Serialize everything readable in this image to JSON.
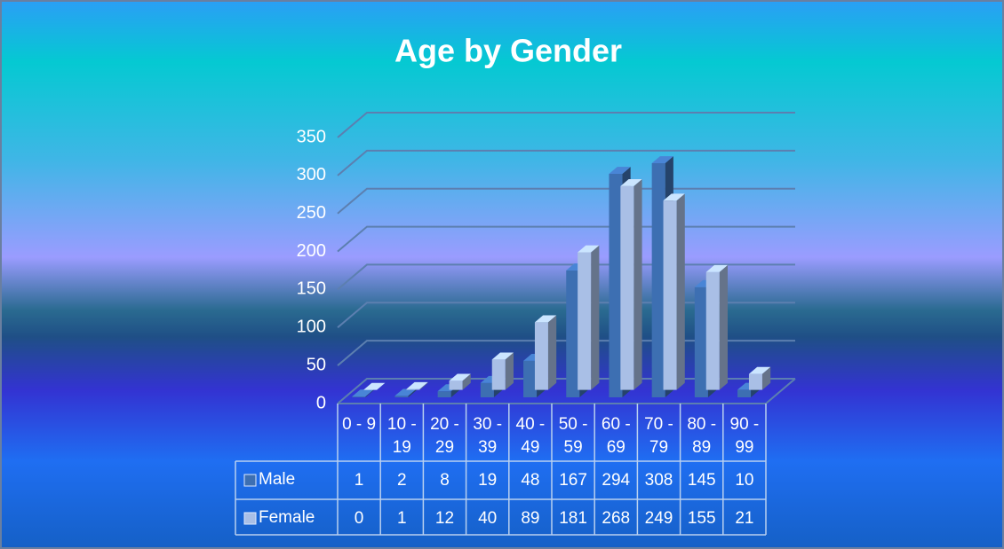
{
  "chart_data": {
    "type": "bar3d",
    "title": "Age by Gender",
    "categories": [
      "0 - 9",
      "10 - 19",
      "20 - 29",
      "30 - 39",
      "40 - 49",
      "50 - 59",
      "60 - 69",
      "70 - 79",
      "80 - 89",
      "90 - 99"
    ],
    "series": [
      {
        "name": "Male",
        "color": "#3d6fb2",
        "values": [
          1,
          2,
          8,
          19,
          48,
          167,
          294,
          308,
          145,
          10
        ]
      },
      {
        "name": "Female",
        "color": "#a9bfe6",
        "values": [
          0,
          1,
          12,
          40,
          89,
          181,
          268,
          249,
          155,
          21
        ]
      }
    ],
    "ylim": [
      0,
      350
    ],
    "yticks": [
      0,
      50,
      100,
      150,
      200,
      250,
      300,
      350
    ],
    "grid": true,
    "data_table": true
  }
}
